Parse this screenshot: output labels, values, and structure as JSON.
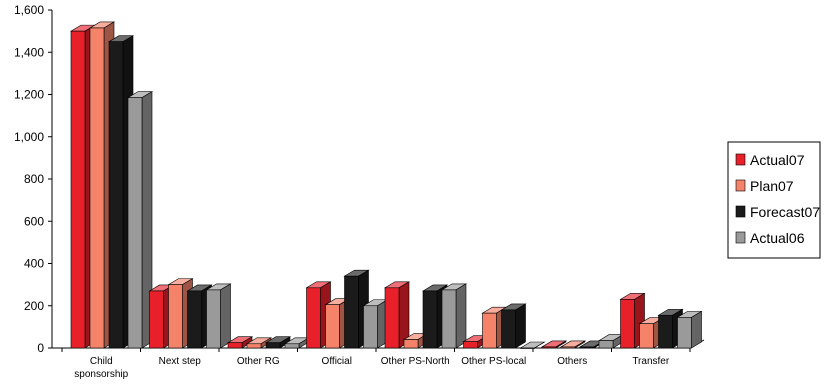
{
  "chart_data": {
    "type": "bar",
    "title": "",
    "xlabel": "",
    "ylabel": "",
    "ylim": [
      0,
      1600
    ],
    "yticks": [
      "0",
      "200",
      "400",
      "600",
      "800",
      "1,000",
      "1,200",
      "1,400",
      "1,600"
    ],
    "categories": [
      [
        "Child",
        "sponsorship"
      ],
      [
        "Next step"
      ],
      [
        "Other RG"
      ],
      [
        "Official"
      ],
      [
        "Other PS-North"
      ],
      [
        "Other PS-local"
      ],
      [
        "Others"
      ],
      [
        "Transfer"
      ]
    ],
    "series": [
      {
        "name": "Actual07",
        "color": "#e8202a",
        "values": [
          1500,
          270,
          25,
          285,
          285,
          30,
          5,
          230
        ]
      },
      {
        "name": "Plan07",
        "color": "#f4836a",
        "values": [
          1515,
          300,
          20,
          205,
          40,
          165,
          5,
          115
        ]
      },
      {
        "name": "Forecast07",
        "color": "#1b1b1b",
        "values": [
          1450,
          270,
          25,
          340,
          270,
          180,
          5,
          155
        ]
      },
      {
        "name": "Actual06",
        "color": "#9a9a9a",
        "values": [
          1185,
          275,
          20,
          200,
          275,
          0,
          35,
          145
        ]
      }
    ],
    "grid": false,
    "legend": "right",
    "style": "3d-bar"
  }
}
